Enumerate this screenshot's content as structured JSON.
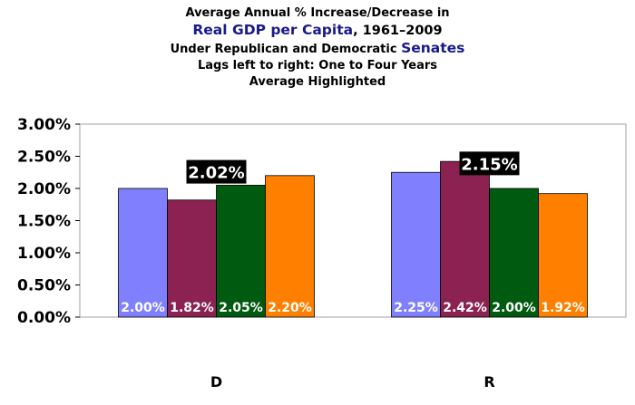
{
  "title": {
    "line1": "Average Annual % Increase/Decrease in",
    "line2_highlight": "Real GDP per Capita",
    "line2_rest": ", 1961–2009",
    "line3_prefix": "Under Republican and Democratic ",
    "line3_highlight": "Senates",
    "line4": "Lags left to right: One to Four Years",
    "line5": "Average Highlighted"
  },
  "chart_data": {
    "type": "bar",
    "categories": [
      "D",
      "R"
    ],
    "series": [
      {
        "color": "#8080ff",
        "values": [
          2.0,
          2.25
        ],
        "labels": [
          "2.00%",
          "2.25%"
        ]
      },
      {
        "color": "#8b2252",
        "values": [
          1.82,
          2.42
        ],
        "labels": [
          "1.82%",
          "2.42%"
        ]
      },
      {
        "color": "#005a0f",
        "values": [
          2.05,
          2.0
        ],
        "labels": [
          "2.05%",
          "2.00%"
        ]
      },
      {
        "color": "#ff8000",
        "values": [
          2.2,
          1.92
        ],
        "labels": [
          "2.20%",
          "1.92%"
        ]
      }
    ],
    "averages": [
      {
        "category": "D",
        "value": 2.02,
        "label": "2.02%"
      },
      {
        "category": "R",
        "value": 2.15,
        "label": "2.15%"
      }
    ],
    "ylim": [
      0,
      3.0
    ],
    "yticks": [
      0,
      0.5,
      1.0,
      1.5,
      2.0,
      2.5,
      3.0
    ],
    "ytick_labels": [
      "0.00%",
      "0.50%",
      "1.00%",
      "1.50%",
      "2.00%",
      "2.50%",
      "3.00%"
    ],
    "grid": false,
    "legend": "none"
  }
}
